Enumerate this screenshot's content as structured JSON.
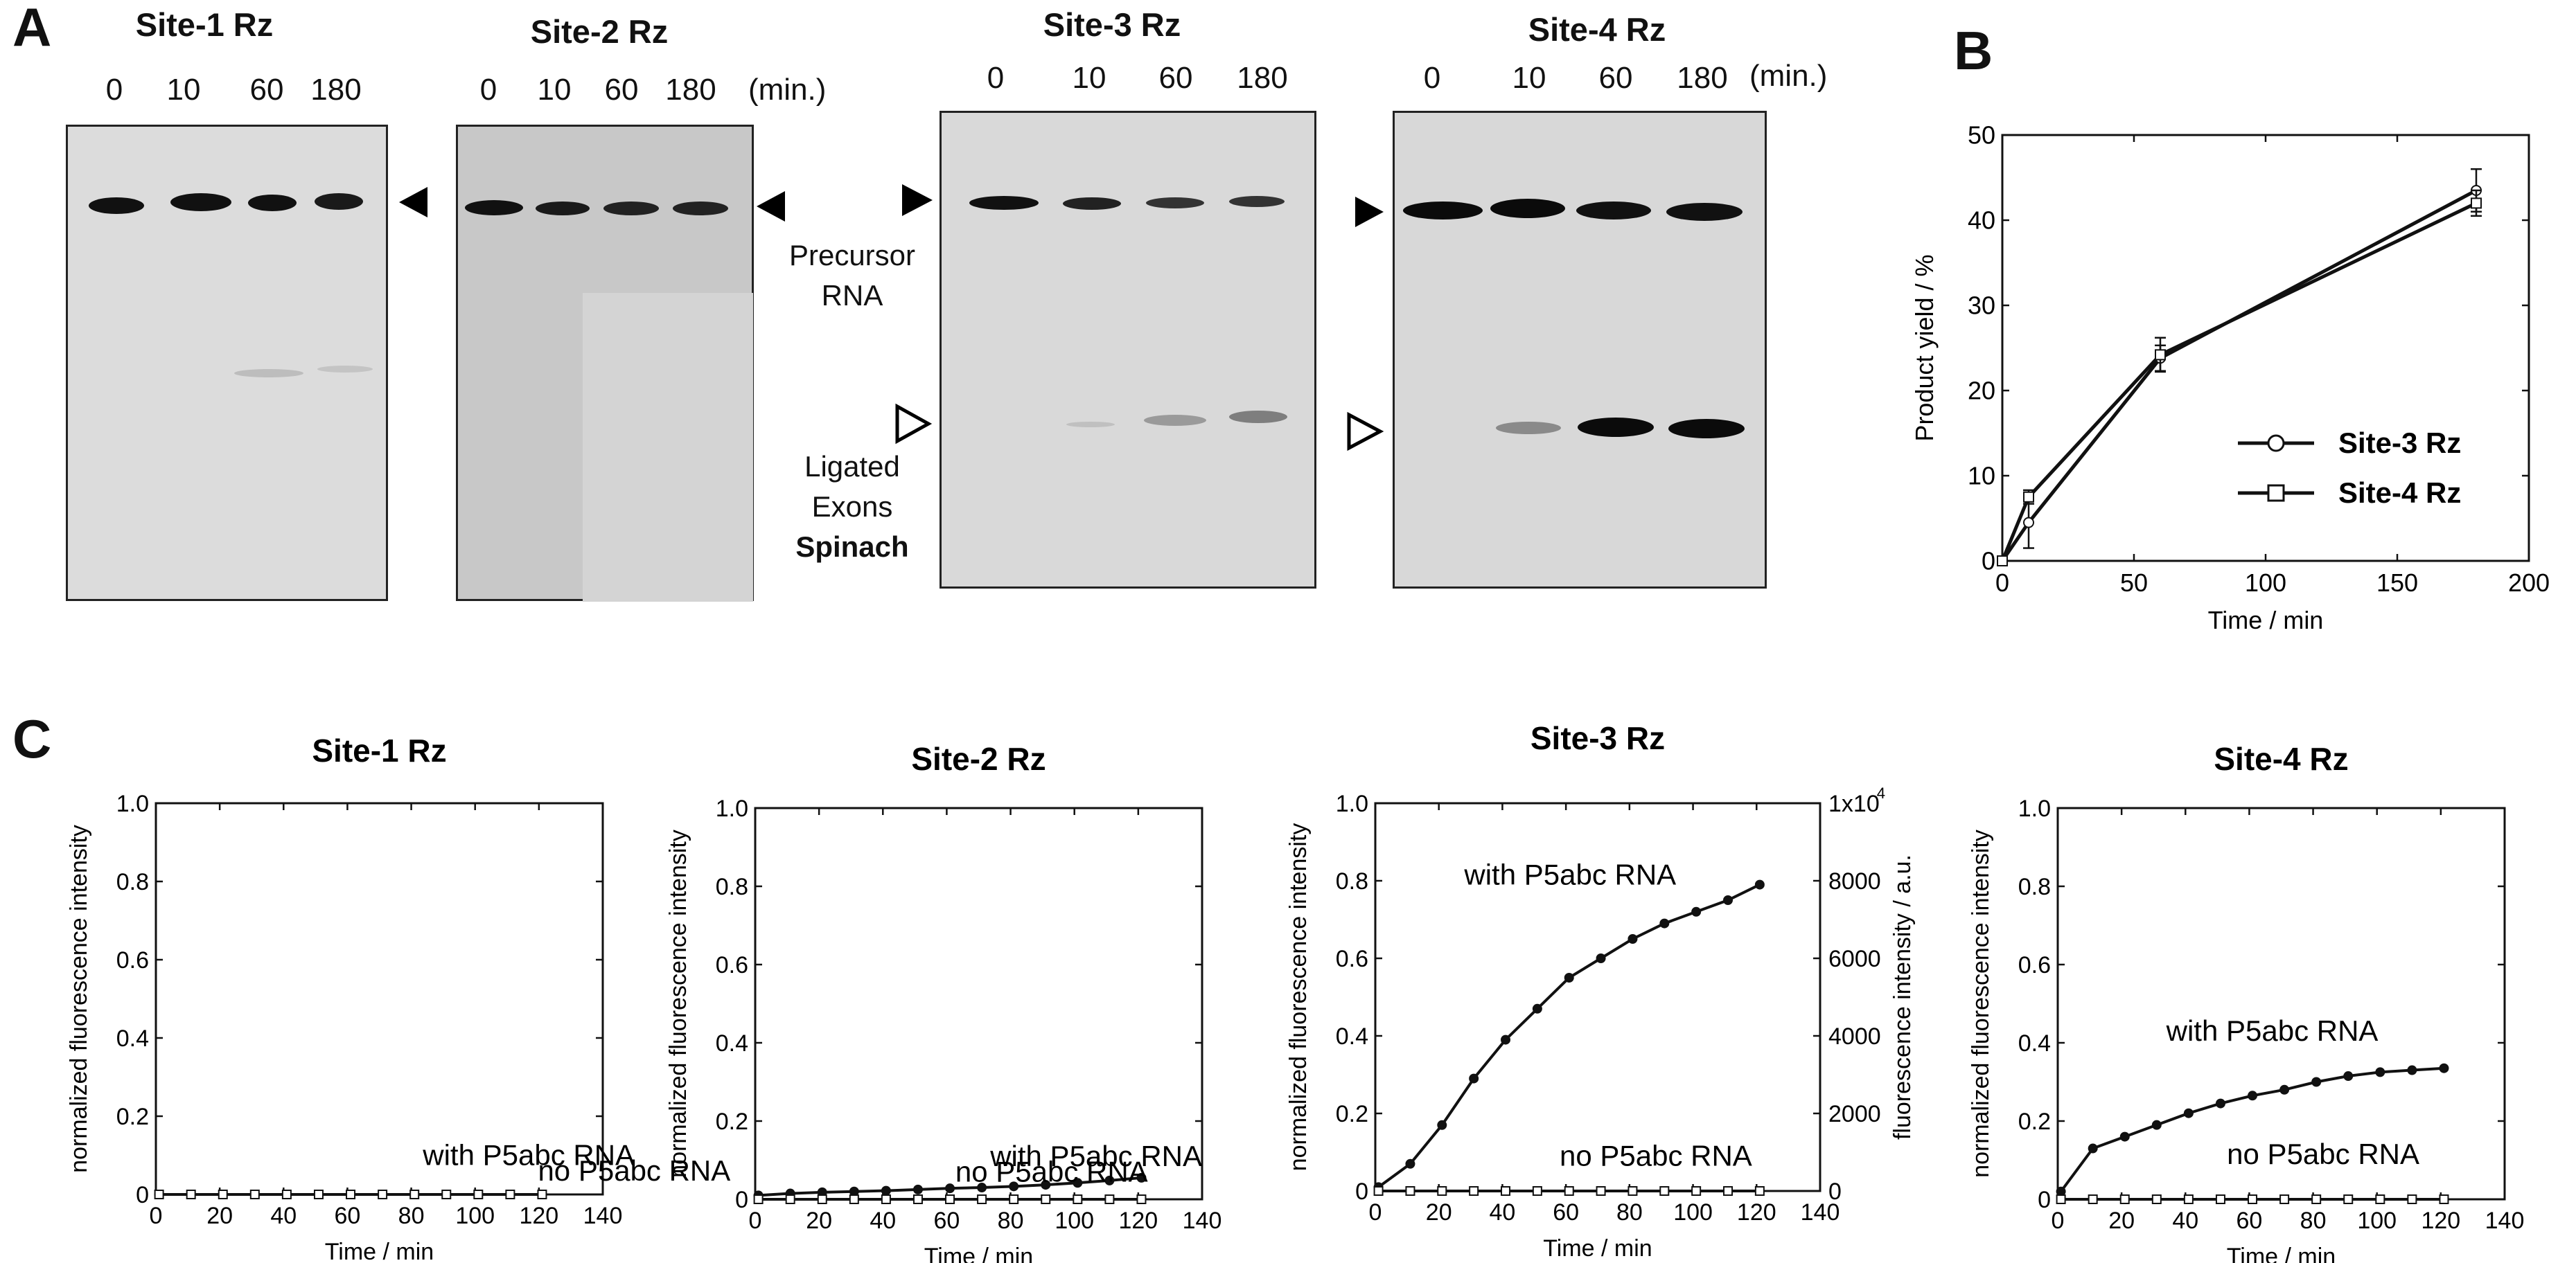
{
  "panel_a": {
    "letter": "A",
    "unit": "(min.)",
    "gels": [
      {
        "title": "Site-1 Rz",
        "lanes": [
          "0",
          "10",
          "60",
          "180"
        ]
      },
      {
        "title": "Site-2 Rz",
        "lanes": [
          "0",
          "10",
          "60",
          "180"
        ]
      },
      {
        "title": "Site-3 Rz",
        "lanes": [
          "0",
          "10",
          "60",
          "180"
        ]
      },
      {
        "title": "Site-4 Rz",
        "lanes": [
          "0",
          "10",
          "60",
          "180"
        ]
      }
    ],
    "precursor_label_1": "Precursor",
    "precursor_label_2": "RNA",
    "ligated_label_1": "Ligated",
    "ligated_label_2": "Exons",
    "ligated_label_3": "Spinach"
  },
  "panel_b": {
    "letter": "B",
    "chart_data": {
      "type": "line",
      "xlabel": "Time / min",
      "ylabel": "Product yield / %",
      "xlim": [
        0,
        200
      ],
      "ylim": [
        0,
        50
      ],
      "xticks": [
        0,
        50,
        100,
        150,
        200
      ],
      "yticks": [
        0,
        10,
        20,
        30,
        40,
        50
      ],
      "legend": "right",
      "series": [
        {
          "name": "Site-3 Rz",
          "marker": "circle",
          "x": [
            0,
            10,
            60,
            180
          ],
          "y": [
            0,
            4.5,
            23.8,
            43.5
          ],
          "err": [
            0,
            3.0,
            1.5,
            2.5
          ]
        },
        {
          "name": "Site-4 Rz",
          "marker": "square",
          "x": [
            0,
            10,
            60,
            180
          ],
          "y": [
            0,
            7.5,
            24.2,
            42.0
          ],
          "err": [
            0,
            0.8,
            2.0,
            1.5
          ]
        }
      ]
    }
  },
  "panel_c": {
    "letter": "C",
    "chart_data": [
      {
        "type": "line",
        "title": "Site-1 Rz",
        "xlabel": "Time / min",
        "ylabel": "normalized fluorescence intensity",
        "xlim": [
          0,
          140
        ],
        "ylim": [
          0,
          1.0
        ],
        "xticks": [
          0,
          20,
          40,
          60,
          80,
          100,
          120,
          140
        ],
        "yticks": [
          0,
          0.2,
          0.4,
          0.6,
          0.8,
          1.0
        ],
        "ytick_labels": [
          "0",
          "0.2",
          "0.4",
          "0.6",
          "0.8",
          "1.0"
        ],
        "annotations": [
          "with P5abc RNA",
          "no P5abc RNA"
        ],
        "series": [
          {
            "name": "with P5abc RNA",
            "marker": "circle",
            "x": [
              1,
              11,
              21,
              31,
              41,
              51,
              61,
              71,
              81,
              91,
              101,
              111,
              121
            ],
            "y": [
              0,
              0,
              0,
              0,
              0,
              0,
              0,
              0,
              0,
              0,
              0,
              0,
              0
            ]
          },
          {
            "name": "no P5abc RNA",
            "marker": "square",
            "x": [
              1,
              11,
              21,
              31,
              41,
              51,
              61,
              71,
              81,
              91,
              101,
              111,
              121
            ],
            "y": [
              0,
              0,
              0,
              0,
              0,
              0,
              0,
              0,
              0,
              0,
              0,
              0,
              0
            ]
          }
        ]
      },
      {
        "type": "line",
        "title": "Site-2 Rz",
        "xlabel": "Time / min",
        "ylabel": "normalized fluorescence intensity",
        "xlim": [
          0,
          140
        ],
        "ylim": [
          0,
          1.0
        ],
        "xticks": [
          0,
          20,
          40,
          60,
          80,
          100,
          120,
          140
        ],
        "yticks": [
          0,
          0.2,
          0.4,
          0.6,
          0.8,
          1.0
        ],
        "ytick_labels": [
          "0",
          "0.2",
          "0.4",
          "0.6",
          "0.8",
          "1.0"
        ],
        "annotations": [
          "with P5abc RNA",
          "no P5abc RNA"
        ],
        "series": [
          {
            "name": "with P5abc RNA",
            "marker": "circle",
            "x": [
              1,
              11,
              21,
              31,
              41,
              51,
              61,
              71,
              81,
              91,
              101,
              111,
              121
            ],
            "y": [
              0.01,
              0.015,
              0.018,
              0.02,
              0.022,
              0.025,
              0.028,
              0.03,
              0.033,
              0.037,
              0.042,
              0.048,
              0.055
            ]
          },
          {
            "name": "no P5abc RNA",
            "marker": "square",
            "x": [
              1,
              11,
              21,
              31,
              41,
              51,
              61,
              71,
              81,
              91,
              101,
              111,
              121
            ],
            "y": [
              0,
              0,
              0,
              0,
              0,
              0,
              0,
              0,
              0,
              0,
              0,
              0,
              0
            ]
          }
        ]
      },
      {
        "type": "line",
        "title": "Site-3 Rz",
        "xlabel": "Time / min",
        "ylabel": "normalized fluorescence intensity",
        "y2label": "fluorescence intensity / a.u.",
        "xlim": [
          0,
          140
        ],
        "ylim": [
          0,
          1.0
        ],
        "xticks": [
          0,
          20,
          40,
          60,
          80,
          100,
          120,
          140
        ],
        "yticks": [
          0,
          0.2,
          0.4,
          0.6,
          0.8,
          1.0
        ],
        "ytick_labels": [
          "0",
          "0.2",
          "0.4",
          "0.6",
          "0.8",
          "1.0"
        ],
        "y2ticks": [
          0,
          2000,
          4000,
          6000,
          8000,
          10000
        ],
        "y2tick_labels": [
          "0",
          "2000",
          "4000",
          "6000",
          "8000",
          "1x10"
        ],
        "y2_exponent": "4",
        "annotations": [
          "with P5abc RNA",
          "no P5abc RNA"
        ],
        "series": [
          {
            "name": "with P5abc RNA",
            "marker": "circle",
            "x": [
              1,
              11,
              21,
              31,
              41,
              51,
              61,
              71,
              81,
              91,
              101,
              111,
              121
            ],
            "y": [
              0.01,
              0.07,
              0.17,
              0.29,
              0.39,
              0.47,
              0.55,
              0.6,
              0.65,
              0.69,
              0.72,
              0.75,
              0.79
            ]
          },
          {
            "name": "no P5abc RNA",
            "marker": "square",
            "x": [
              1,
              11,
              21,
              31,
              41,
              51,
              61,
              71,
              81,
              91,
              101,
              111,
              121
            ],
            "y": [
              0,
              0,
              0,
              0,
              0,
              0,
              0,
              0,
              0,
              0,
              0,
              0,
              0
            ]
          }
        ]
      },
      {
        "type": "line",
        "title": "Site-4 Rz",
        "xlabel": "Time / min",
        "ylabel": "normalized fluorescence intensity",
        "xlim": [
          0,
          140
        ],
        "ylim": [
          0,
          1.0
        ],
        "xticks": [
          0,
          20,
          40,
          60,
          80,
          100,
          120,
          140
        ],
        "yticks": [
          0,
          0.2,
          0.4,
          0.6,
          0.8,
          1.0
        ],
        "ytick_labels": [
          "0",
          "0.2",
          "0.4",
          "0.6",
          "0.8",
          "1.0"
        ],
        "annotations": [
          "with P5abc RNA",
          "no P5abc RNA"
        ],
        "series": [
          {
            "name": "with P5abc RNA",
            "marker": "circle",
            "x": [
              1,
              11,
              21,
              31,
              41,
              51,
              61,
              71,
              81,
              91,
              101,
              111,
              121
            ],
            "y": [
              0.02,
              0.13,
              0.16,
              0.19,
              0.22,
              0.245,
              0.265,
              0.28,
              0.3,
              0.315,
              0.325,
              0.33,
              0.335
            ]
          },
          {
            "name": "no P5abc RNA",
            "marker": "square",
            "x": [
              1,
              11,
              21,
              31,
              41,
              51,
              61,
              71,
              81,
              91,
              101,
              111,
              121
            ],
            "y": [
              0,
              0,
              0,
              0,
              0,
              0,
              0,
              0,
              0,
              0,
              0,
              0,
              0
            ]
          }
        ]
      }
    ]
  }
}
